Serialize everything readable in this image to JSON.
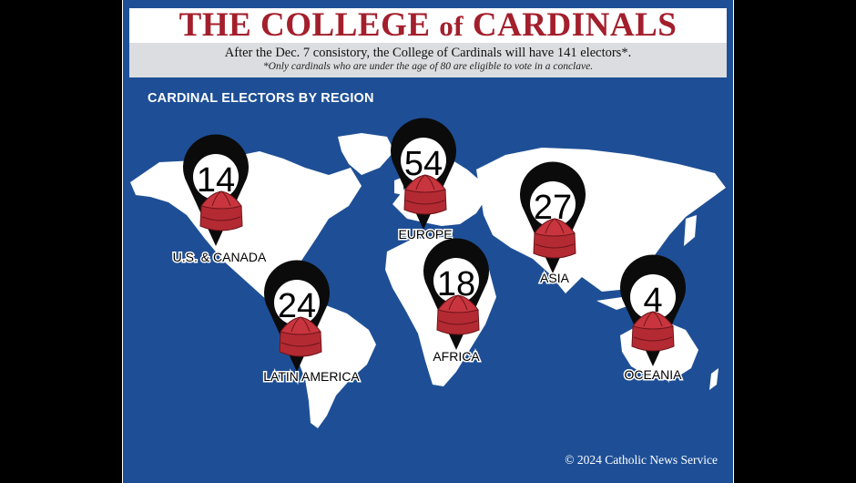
{
  "header": {
    "title_main": "THE COLLEGE ",
    "title_of": "of",
    "title_end": " CARDINALS",
    "subtitle": "After the Dec. 7 consistory, the College of Cardinals will have 141 electors*.",
    "footnote": "*Only cardinals who are under the age of 80 are eligible to vote in a conclave."
  },
  "section_title": "CARDINAL ELECTORS BY REGION",
  "regions": [
    {
      "name": "U.S. & CANADA",
      "count": "14"
    },
    {
      "name": "EUROPE",
      "count": "54"
    },
    {
      "name": "ASIA",
      "count": "27"
    },
    {
      "name": "LATIN AMERICA",
      "count": "24"
    },
    {
      "name": "AFRICA",
      "count": "18"
    },
    {
      "name": "OCEANIA",
      "count": "4"
    }
  ],
  "credit": "© 2024 Catholic News Service",
  "colors": {
    "ocean": "#1e4f96",
    "land": "#ffffff",
    "title_red": "#a31f2c",
    "hat_red": "#b42a33",
    "marker": "#0b0b0b"
  }
}
